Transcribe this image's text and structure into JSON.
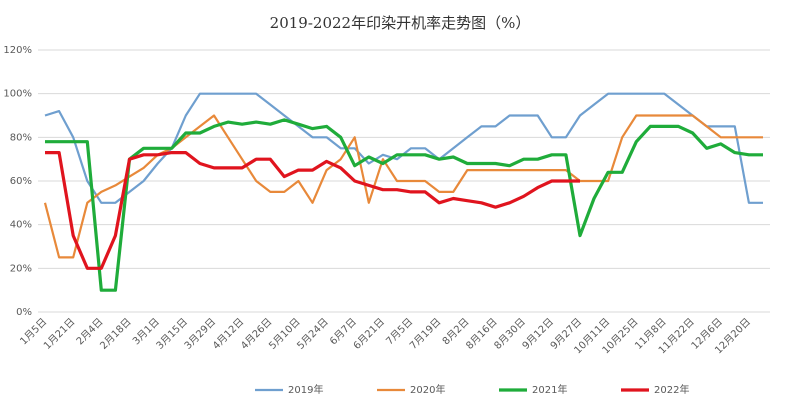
{
  "chart_data": {
    "type": "line",
    "title": "2019-2022年印染开机率走势图（%）",
    "categories": [
      "1月5日",
      null,
      "1月21日",
      null,
      "2月4日",
      null,
      "2月18日",
      null,
      "3月1日",
      null,
      "3月15日",
      null,
      "3月29日",
      null,
      "4月12日",
      null,
      "4月26日",
      null,
      "5月10日",
      null,
      "5月24日",
      null,
      "6月7日",
      null,
      "6月21日",
      null,
      "7月5日",
      null,
      "7月19日",
      null,
      "8月2日",
      null,
      "8月16日",
      null,
      "8月30日",
      null,
      "9月12日",
      null,
      "9月27日",
      null,
      "10月11日",
      null,
      "10月25日",
      null,
      "11月8日",
      null,
      "11月22日",
      null,
      "12月6日",
      null,
      "12月20日",
      null
    ],
    "series": [
      {
        "name": "2019年",
        "color": "#6f9fcf",
        "values": [
          90,
          92,
          80,
          60,
          50,
          50,
          55,
          60,
          68,
          75,
          90,
          100,
          100,
          100,
          100,
          100,
          95,
          90,
          85,
          80,
          80,
          75,
          75,
          68,
          72,
          70,
          75,
          75,
          70,
          75,
          80,
          85,
          85,
          90,
          90,
          90,
          80,
          80,
          90,
          95,
          100,
          100,
          100,
          100,
          100,
          95,
          90,
          85,
          85,
          85,
          50,
          50
        ]
      },
      {
        "name": "2020年",
        "color": "#e8893a",
        "values": [
          50,
          25,
          25,
          50,
          55,
          58,
          62,
          66,
          72,
          75,
          80,
          85,
          90,
          80,
          70,
          60,
          55,
          55,
          60,
          50,
          65,
          70,
          80,
          50,
          70,
          60,
          60,
          60,
          55,
          55,
          65,
          65,
          65,
          65,
          65,
          65,
          65,
          65,
          60,
          60,
          60,
          80,
          90,
          90,
          90,
          90,
          90,
          85,
          80,
          80,
          80,
          80
        ]
      },
      {
        "name": "2021年",
        "color": "#1fac3a",
        "values": [
          78,
          78,
          78,
          78,
          10,
          10,
          70,
          75,
          75,
          75,
          82,
          82,
          85,
          87,
          86,
          87,
          86,
          88,
          86,
          84,
          85,
          80,
          67,
          71,
          68,
          72,
          72,
          72,
          70,
          71,
          68,
          68,
          68,
          67,
          70,
          70,
          72,
          72,
          35,
          52,
          64,
          64,
          78,
          85,
          85,
          85,
          82,
          75,
          77,
          73,
          72,
          72
        ]
      },
      {
        "name": "2022年",
        "color": "#e0141e",
        "values": [
          73,
          73,
          35,
          20,
          20,
          35,
          70,
          72,
          72,
          73,
          73,
          68,
          66,
          66,
          66,
          70,
          70,
          62,
          65,
          65,
          69,
          66,
          60,
          58,
          56,
          56,
          55,
          55,
          50,
          52,
          51,
          50,
          48,
          50,
          53,
          57,
          60,
          60,
          60,
          null,
          null,
          null,
          null,
          null,
          null,
          null,
          null,
          null,
          null,
          null,
          null,
          null
        ]
      }
    ],
    "ylim": [
      0,
      120
    ],
    "yticks": [
      {
        "value": 0,
        "label": "0%"
      },
      {
        "value": 20,
        "label": "20%"
      },
      {
        "value": 40,
        "label": "40%"
      },
      {
        "value": 60,
        "label": "60%"
      },
      {
        "value": 80,
        "label": "80%"
      },
      {
        "value": 100,
        "label": "100%"
      },
      {
        "value": 120,
        "label": "120%"
      }
    ],
    "grid": true,
    "legend": "bottom"
  }
}
